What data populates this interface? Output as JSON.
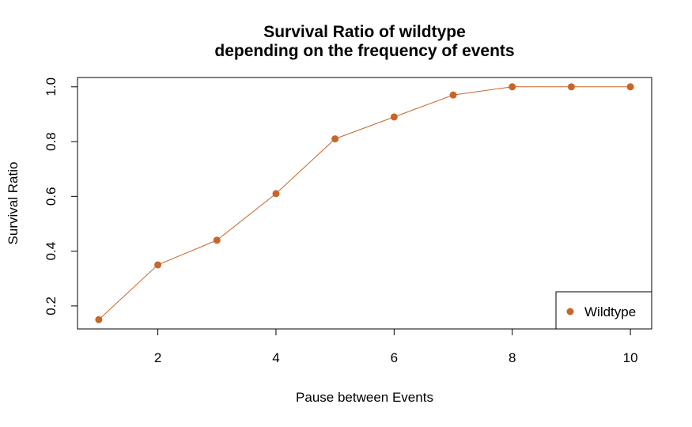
{
  "chart_data": {
    "type": "line",
    "title_lines": [
      "Survival Ratio of wildtype",
      "depending on the frequency of events"
    ],
    "xlabel": "Pause between Events",
    "ylabel": "Survival Ratio",
    "x": [
      1,
      2,
      3,
      4,
      5,
      6,
      7,
      8,
      9,
      10
    ],
    "series": [
      {
        "name": "Wildtype",
        "values": [
          0.15,
          0.35,
          0.44,
          0.61,
          0.81,
          0.89,
          0.97,
          1.0,
          1.0,
          1.0
        ]
      }
    ],
    "xlim": [
      0.64,
      10.36
    ],
    "ylim": [
      0.116,
      1.034
    ],
    "xticks": [
      2,
      4,
      6,
      8,
      10
    ],
    "xtick_labels": [
      "2",
      "4",
      "6",
      "8",
      "10"
    ],
    "yticks": [
      0.2,
      0.4,
      0.6,
      0.8,
      1.0
    ],
    "ytick_labels": [
      "0.2",
      "0.4",
      "0.6",
      "0.8",
      "1.0"
    ],
    "grid": false,
    "legend_position": "bottom-right",
    "colors": {
      "series": "#c8662a",
      "axis": "#000000"
    }
  }
}
